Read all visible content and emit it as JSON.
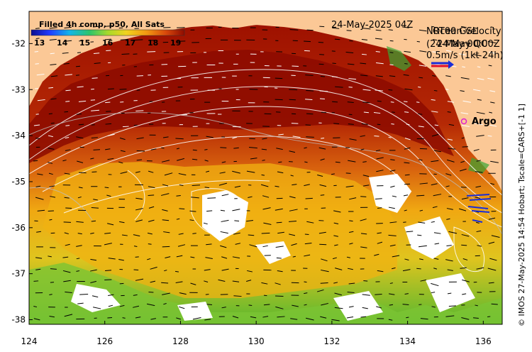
{
  "map": {
    "date_label": "24-May-2025 04Z",
    "legend": {
      "line1_overlap": "NRT00 GSL",
      "line1": "Ocean velocity",
      "line2_overlap": "(24-May 00:00Z",
      "line2": "24 May QC",
      "scale": "0.5m/s (1kt 24h)"
    },
    "argo_label": "Argo",
    "credit": "© IMOS 27-May-2025 14:54 Hobart; Tscale=CARS+[-1 1]",
    "colorbar": {
      "title": "Filled 4h comp, p50, All Sats",
      "ticks": [
        "13",
        "14",
        "15",
        "16",
        "17",
        "18",
        "19"
      ]
    },
    "colors": {
      "land": "#fbc896",
      "coast_green": "#3aa535",
      "warm": "#9b0e00",
      "cool": "#f0b000",
      "arrow_blue": "#1a2dd6",
      "arrow_red": "#e0102a"
    },
    "axes": {
      "x_ticks": [
        "124",
        "126",
        "128",
        "130",
        "132",
        "134",
        "136"
      ],
      "y_ticks": [
        "-32",
        "-33",
        "-34",
        "-35",
        "-36",
        "-37",
        "-38"
      ],
      "lon_range": [
        124,
        136.5
      ],
      "lat_range": [
        -31.3,
        -38.1
      ]
    }
  }
}
